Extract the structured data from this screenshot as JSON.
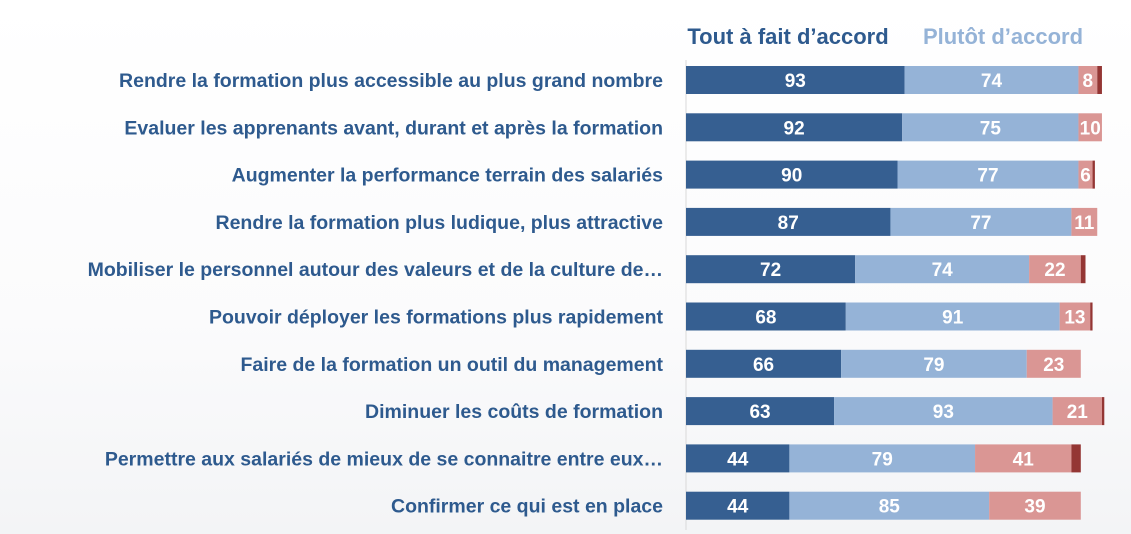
{
  "colors": {
    "tout_a_fait": "#365f91",
    "plutot": "#95b3d7",
    "plutot_pas": "#da9694",
    "pas_du_tout": "#943634",
    "label_text": "#2e5a8e",
    "legend_light": "#95b3d7"
  },
  "chart_data": {
    "type": "bar",
    "orientation": "horizontal",
    "stacked": true,
    "legend_position": "top-right",
    "categories": [
      "Rendre la formation plus accessible au plus grand nombre",
      "Evaluer les apprenants avant, durant et après la formation",
      "Augmenter la performance terrain des salariés",
      "Rendre la formation plus ludique, plus attractive",
      "Mobiliser le personnel autour des valeurs et de la culture de…",
      "Pouvoir déployer les formations plus rapidement",
      "Faire de la formation un outil du management",
      "Diminuer les coûts de formation",
      "Permettre aux salariés de mieux de se connaitre entre eux…",
      "Confirmer ce qui est en place"
    ],
    "series": [
      {
        "name": "Tout à fait d’accord",
        "values": [
          93,
          92,
          90,
          87,
          72,
          68,
          66,
          63,
          44,
          44
        ]
      },
      {
        "name": "Plutôt d’accord",
        "values": [
          74,
          75,
          77,
          77,
          74,
          91,
          79,
          93,
          79,
          85
        ]
      },
      {
        "values": [
          8,
          10,
          6,
          11,
          22,
          13,
          23,
          21,
          41,
          39
        ]
      },
      {
        "values": [
          2,
          0,
          1,
          0,
          2,
          1,
          0,
          1,
          4,
          0
        ]
      }
    ]
  }
}
